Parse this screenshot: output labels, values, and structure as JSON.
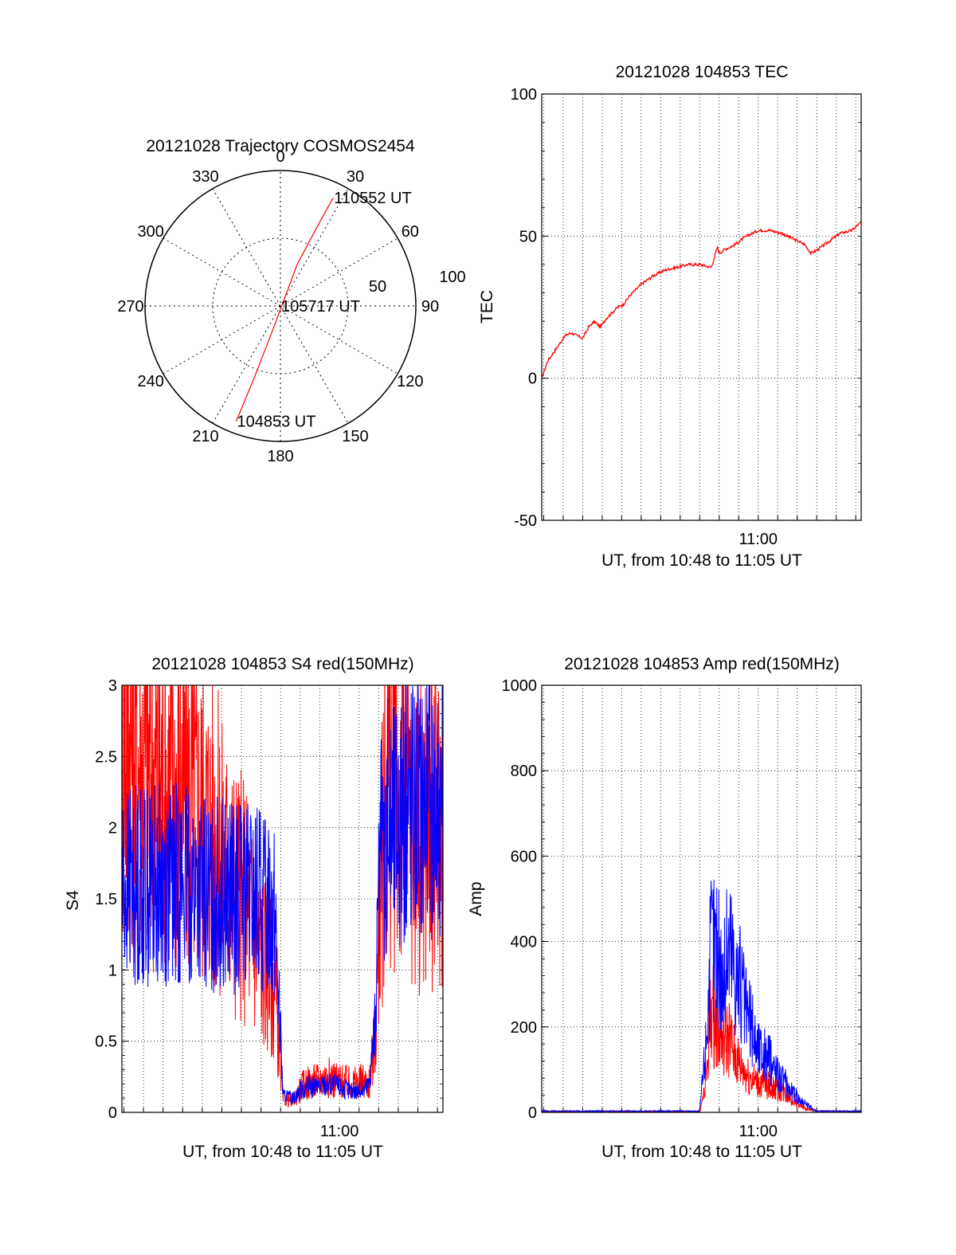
{
  "chart_data": [
    {
      "id": "trajectory",
      "type": "polar",
      "title": "20121028 Trajectory COSMOS2454",
      "radial_axis": "elevation",
      "rings": [
        50,
        100
      ],
      "ring_labels": [
        "50",
        "100"
      ],
      "angle_labels": [
        "0",
        "30",
        "60",
        "90",
        "120",
        "150",
        "180",
        "210",
        "240",
        "270",
        "300",
        "330"
      ],
      "angles": [
        0,
        30,
        60,
        90,
        120,
        150,
        180,
        210,
        240,
        270,
        300,
        330
      ],
      "series": [
        {
          "color": "#ff0000",
          "points": [
            {
              "az": 201,
              "el": 8
            },
            {
              "az": 200,
              "el": 40
            },
            {
              "az": 198,
              "el": 72
            },
            {
              "az": 22,
              "el": 60
            },
            {
              "az": 25,
              "el": 30
            },
            {
              "az": 26,
              "el": 10
            }
          ]
        }
      ],
      "annotations": [
        {
          "text": "104853 UT",
          "az": 201,
          "el": 8
        },
        {
          "text": "105717 UT",
          "az": 100,
          "el": 90
        },
        {
          "text": "110552 UT",
          "az": 26,
          "el": 10
        }
      ],
      "grid": true
    },
    {
      "id": "tec",
      "type": "line",
      "title": "20121028 104853 TEC",
      "xlabel": "UT, from 10:48 to 11:05 UT",
      "ylabel": "TEC",
      "xlim": [
        10.815,
        11.088
      ],
      "ylim": [
        -50,
        100
      ],
      "yticks": [
        -50,
        0,
        50,
        100
      ],
      "xtick_labels": [
        {
          "x": 11.0,
          "label": "11:00"
        }
      ],
      "grid": true,
      "series": [
        {
          "color": "#ff0000",
          "x": [
            10.815,
            10.82,
            10.83,
            10.835,
            10.84,
            10.85,
            10.855,
            10.86,
            10.865,
            10.87,
            10.875,
            10.88,
            10.885,
            10.89,
            10.9,
            10.91,
            10.92,
            10.93,
            10.94,
            10.95,
            10.96,
            10.965,
            10.967,
            10.97,
            10.98,
            10.99,
            11.0,
            11.01,
            11.02,
            11.03,
            11.04,
            11.045,
            11.05,
            11.06,
            11.07,
            11.08,
            11.088
          ],
          "y": [
            0,
            6,
            12,
            15,
            16,
            14,
            18,
            20,
            18,
            21,
            23,
            25,
            26,
            29,
            33,
            36,
            38,
            39,
            40,
            40,
            39,
            46,
            44,
            45,
            47,
            50,
            52,
            52,
            51,
            49,
            47,
            44,
            45,
            48,
            51,
            52,
            55
          ]
        }
      ]
    },
    {
      "id": "s4",
      "type": "line",
      "title": "20121028 104853 S4 red(150MHz)",
      "xlabel": "UT, from 10:48 to 11:05 UT",
      "ylabel": "S4",
      "xlim": [
        10.815,
        11.088
      ],
      "ylim": [
        0,
        3
      ],
      "yticks": [
        0,
        0.5,
        1,
        1.5,
        2,
        2.5,
        3
      ],
      "ytick_labels": [
        "0",
        "0.5",
        "1",
        "1.5",
        "2",
        "2.5",
        "3"
      ],
      "xtick_labels": [
        {
          "x": 11.0,
          "label": "11:00"
        }
      ],
      "grid": true,
      "series": [
        {
          "color": "#ff0000",
          "x": [
            10.815,
            10.83,
            10.85,
            10.87,
            10.89,
            10.9,
            10.91,
            10.92,
            10.93,
            10.945,
            10.952,
            10.96,
            10.97,
            10.98,
            10.99,
            11.0,
            11.01,
            11.02,
            11.025,
            11.03,
            11.035,
            11.04,
            11.06,
            11.088
          ],
          "y": [
            2.7,
            2.5,
            2.3,
            2.2,
            2.0,
            1.8,
            1.6,
            1.5,
            1.2,
            0.9,
            0.1,
            0.08,
            0.2,
            0.22,
            0.25,
            0.22,
            0.2,
            0.22,
            0.2,
            0.5,
            1.5,
            2.5,
            2.0,
            2.0
          ],
          "noise": 0.6
        },
        {
          "color": "#0000ff",
          "x": [
            10.815,
            10.83,
            10.85,
            10.87,
            10.89,
            10.9,
            10.91,
            10.92,
            10.93,
            10.945,
            10.952,
            10.96,
            10.97,
            10.98,
            10.99,
            11.0,
            11.01,
            11.02,
            11.025,
            11.03,
            11.035,
            11.04,
            11.06,
            11.088
          ],
          "y": [
            1.6,
            1.6,
            1.6,
            1.6,
            1.5,
            1.55,
            1.5,
            1.5,
            1.5,
            1.45,
            0.12,
            0.1,
            0.18,
            0.18,
            0.2,
            0.18,
            0.15,
            0.15,
            0.2,
            0.6,
            1.8,
            2.0,
            2.2,
            2.2
          ],
          "noise": 0.45
        }
      ]
    },
    {
      "id": "amp",
      "type": "line",
      "title": "20121028 104853 Amp red(150MHz)",
      "xlabel": "UT, from 10:48 to 11:05 UT",
      "ylabel": "Amp",
      "xlim": [
        10.815,
        11.088
      ],
      "ylim": [
        0,
        1000
      ],
      "yticks": [
        0,
        200,
        400,
        600,
        800,
        1000
      ],
      "xtick_labels": [
        {
          "x": 11.0,
          "label": "11:00"
        }
      ],
      "grid": true,
      "series": [
        {
          "color": "#ff0000",
          "x": [
            10.815,
            10.9,
            10.95,
            10.955,
            10.96,
            10.965,
            10.97,
            10.975,
            10.98,
            10.99,
            11.0,
            11.01,
            11.02,
            11.03,
            11.04,
            11.05,
            11.088
          ],
          "y": [
            2,
            2,
            2,
            60,
            250,
            200,
            160,
            180,
            130,
            90,
            70,
            60,
            50,
            30,
            8,
            3,
            2
          ],
          "noise": 0.55
        },
        {
          "color": "#0000ff",
          "x": [
            10.815,
            10.9,
            10.95,
            10.955,
            10.96,
            10.965,
            10.97,
            10.975,
            10.98,
            10.99,
            11.0,
            11.01,
            11.02,
            11.03,
            11.04,
            11.05,
            11.088
          ],
          "y": [
            3,
            3,
            3,
            150,
            400,
            380,
            300,
            400,
            350,
            230,
            150,
            120,
            80,
            45,
            20,
            3,
            3
          ],
          "noise": 0.5
        }
      ]
    }
  ]
}
